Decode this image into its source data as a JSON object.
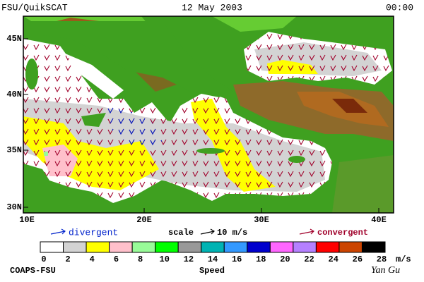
{
  "header": {
    "title": "FSU/QuikSCAT",
    "date": "12 May 2003",
    "time": "00:00"
  },
  "map": {
    "lat_labels": [
      "45N",
      "40N",
      "35N",
      "30N"
    ],
    "lon_labels": [
      "10E",
      "20E",
      "30E",
      "40E"
    ]
  },
  "legend": {
    "divergent": "divergent",
    "scale": "scale",
    "scale_value": "10 m/s",
    "convergent": "convergent"
  },
  "colorbar": {
    "labels": [
      "0",
      "2",
      "4",
      "6",
      "8",
      "10",
      "12",
      "14",
      "16",
      "18",
      "20",
      "22",
      "24",
      "26",
      "28"
    ],
    "unit": "m/s",
    "title": "Speed",
    "colors": [
      "#ffffff",
      "#d3d3d3",
      "#ffff00",
      "#ffc0cb",
      "#98fb98",
      "#00ff00",
      "#999999",
      "#00b3b3",
      "#3399ff",
      "#0000cd",
      "#ff66ff",
      "#b580ff",
      "#ff0000",
      "#cc4400",
      "#000000"
    ]
  },
  "footer": {
    "credit": "COAPS-FSU",
    "author": "Yan Gu"
  }
}
